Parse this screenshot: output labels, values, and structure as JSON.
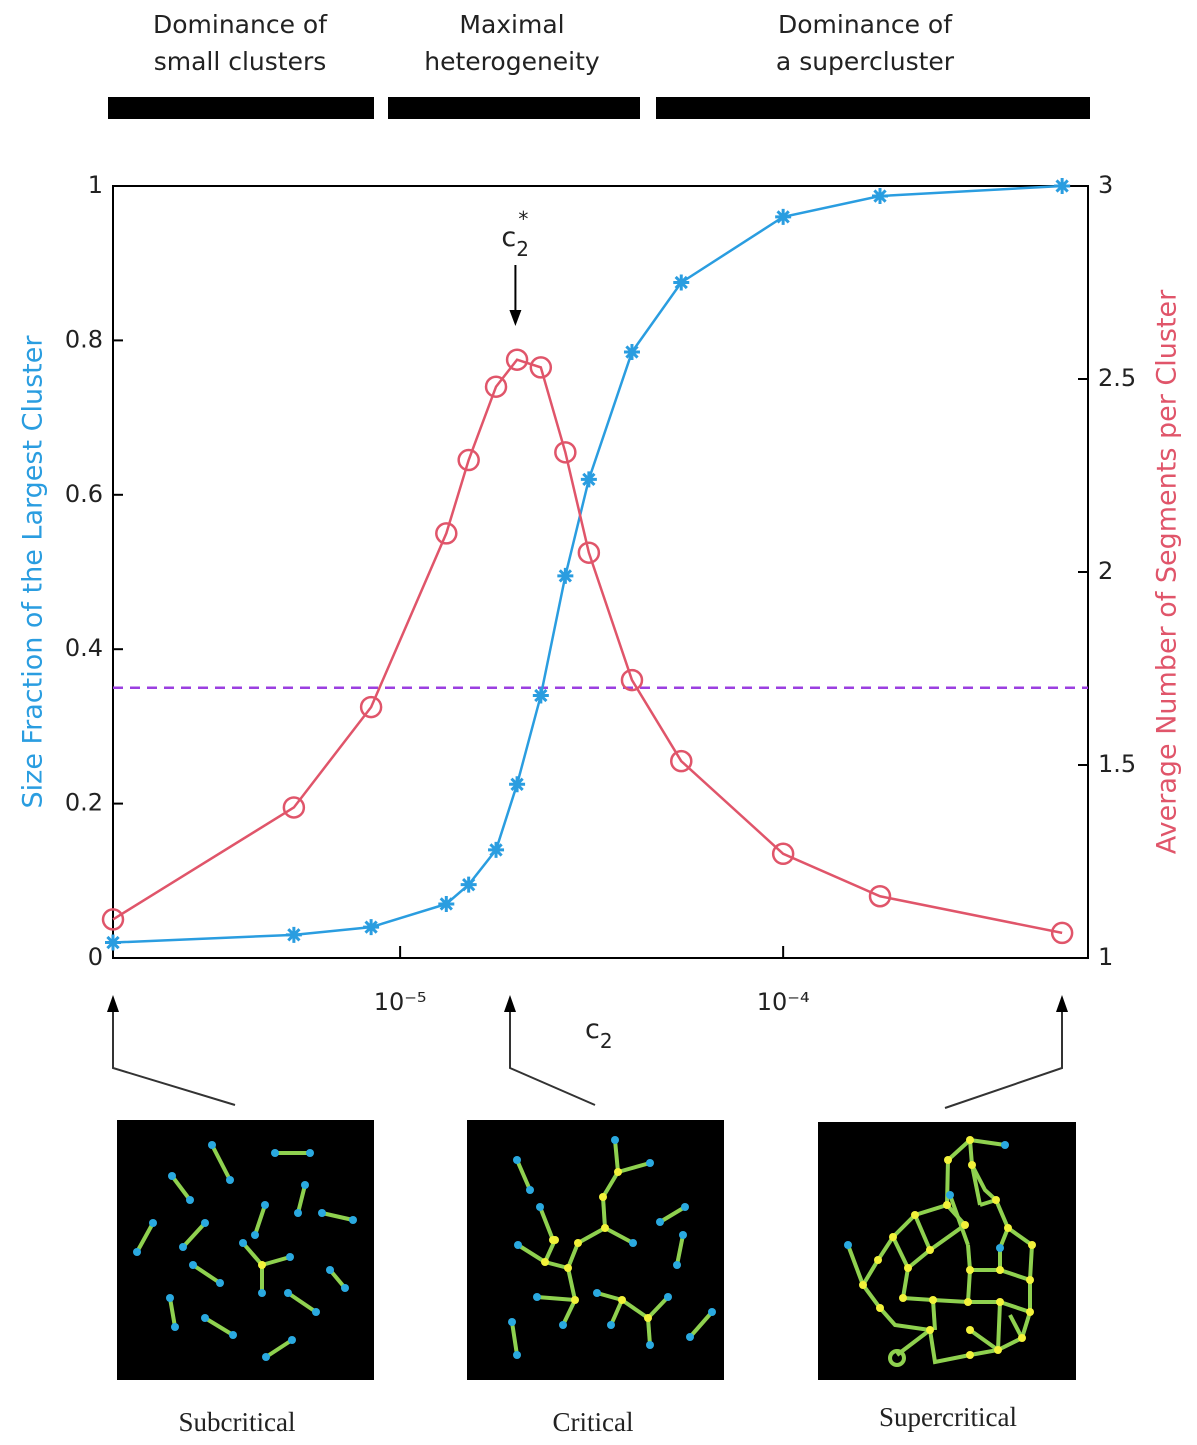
{
  "chart_data": {
    "type": "line",
    "regimes": [
      "Dominance of\nsmall clusters",
      "Maximal\nheterogeneity",
      "Dominance of\na supercluster"
    ],
    "ylabel": "Size Fraction of the Largest Cluster",
    "y2label": "Average Number of Segments per Cluster",
    "xlabel": {
      "base": "c",
      "sub": "2"
    },
    "annotation": {
      "base": "c",
      "sub": "2",
      "sup": "*",
      "x": 2e-05
    },
    "x": [
      1.78e-06,
      5.28e-06,
      8.4e-06,
      1.32e-05,
      1.51e-05,
      1.78e-05,
      2.02e-05,
      2.33e-05,
      2.7e-05,
      3.11e-05,
      4.03e-05,
      5.42e-05,
      0.0001,
      0.000179,
      0.000535
    ],
    "xlim": [
      1.78e-06,
      0.000625
    ],
    "xscale": "log",
    "xticks": [
      {
        "value": 1e-05,
        "label": "10⁻⁵"
      },
      {
        "value": 0.0001,
        "label": "10⁻⁴"
      }
    ],
    "ylim": [
      0,
      1
    ],
    "yticks": [
      0,
      0.2,
      0.4,
      0.6,
      0.8,
      1
    ],
    "y2lim": [
      1,
      3
    ],
    "y2ticks": [
      1,
      1.5,
      2,
      2.5,
      3
    ],
    "threshold": {
      "value": 0.35,
      "color": "#9b3fe0"
    },
    "series": [
      {
        "name": "Size Fraction of the Largest Cluster",
        "color": "#2a9de0",
        "marker": "asterisk",
        "values": [
          0.02,
          0.03,
          0.04,
          0.07,
          0.095,
          0.14,
          0.225,
          0.34,
          0.495,
          0.62,
          0.785,
          0.875,
          0.96,
          0.987,
          1.0
        ]
      },
      {
        "name": "Average Number of Segments per Cluster",
        "color": "#e0556a",
        "marker": "circle",
        "axis": "y2",
        "values": [
          1.1,
          1.39,
          1.65,
          2.1,
          2.29,
          2.48,
          2.55,
          2.53,
          2.31,
          2.05,
          1.72,
          1.51,
          1.27,
          1.16,
          1.065
        ]
      }
    ],
    "panels": [
      "Subcritical",
      "Critical",
      "Supercritical"
    ]
  }
}
